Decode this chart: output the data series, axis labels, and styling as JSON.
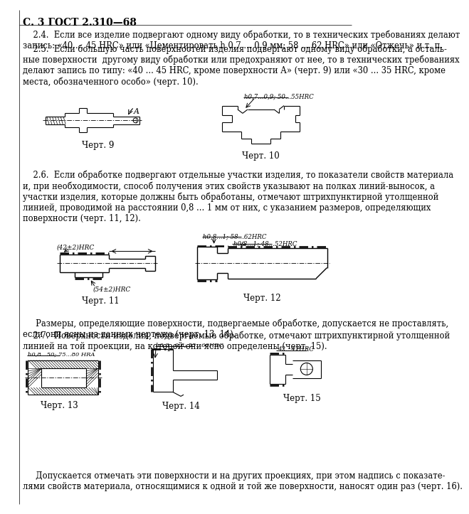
{
  "page_header": "С. 3 ГОСТ 2.310—68",
  "background_color": "#ffffff",
  "text_color": "#000000",
  "para24": "    2.4.  Если все изделие подвергают одному виду обработки, то в технических требованиях делают\nзапись: «40 ... 45 HRC» или «Цементировать h 0,7 ... 0,9 мм; 58 ... 62 HRC» или «Отжечь» и т. п.",
  "para25": "    2.5.  Если большую часть поверхностей изделия подвергают одному виду обработки, а осталь-\nные поверхности  другому виду обработки или предохраняют от нее, то в технических требованиях\nделают запись по типу: «40 ... 45 HRC, кроме поверхности А» (черт. 9) или «30 ... 35 HRC, кроме\nместа, обозначенного особо» (черт. 10).",
  "cap9": "Черт. 9",
  "cap10": "Черт. 10",
  "para26": "    2.6.  Если обработке подвергают отдельные участки изделия, то показатели свойств материала\nи, при необходимости, способ получения этих свойств указывают на полках линий-выносок, а\nучастки изделия, которые должны быть обработаны, отмечают штрихпунктирной утолщенной\nлинией, проводимой на расстоянии 0,8 ... 1 мм от них, с указанием размеров, определяющих\nповерхности (черт. 11, 12).",
  "cap11": "Черт. 11",
  "cap12": "Черт. 12",
  "para_sizes": "     Размеры, определяющие поверхности, подвергаемые обработке, допускается не проставлять,\nесли они ясны из данных чертежа (черт. 13, 14).",
  "para27": "    2.7.  Поверхности изделия, подвергаемые обработке, отмечают штрихпунктирной утолщенной\nлинией на той проекции, на которой они ясно определены (черт. 15).",
  "cap13": "Черт. 13",
  "cap14": "Черт. 14",
  "cap15": "Черт. 15",
  "para_last": "     Допускается отмечать эти поверхности и на других проекциях, при этом надпись с показате-\nлями свойств материала, относящимися к одной и той же поверхности, наносят один раз (черт. 16).",
  "ann9_label": "A",
  "ann10_text": "h0,7...0,9; 50...55HRC",
  "ann11a_text": "(42±2)HRC",
  "ann11b_text": "(54±2)HRC",
  "ann12a_text": "h0,8...1; 58...62HRC",
  "ann12b_text": "h0,8...1; 48...52HRC",
  "ann13_text": "h0,8...50; 75...80 HRA",
  "ann14_text": "h0,8...0,8; 55...60HRC",
  "ann15_text": "42...47HRC"
}
